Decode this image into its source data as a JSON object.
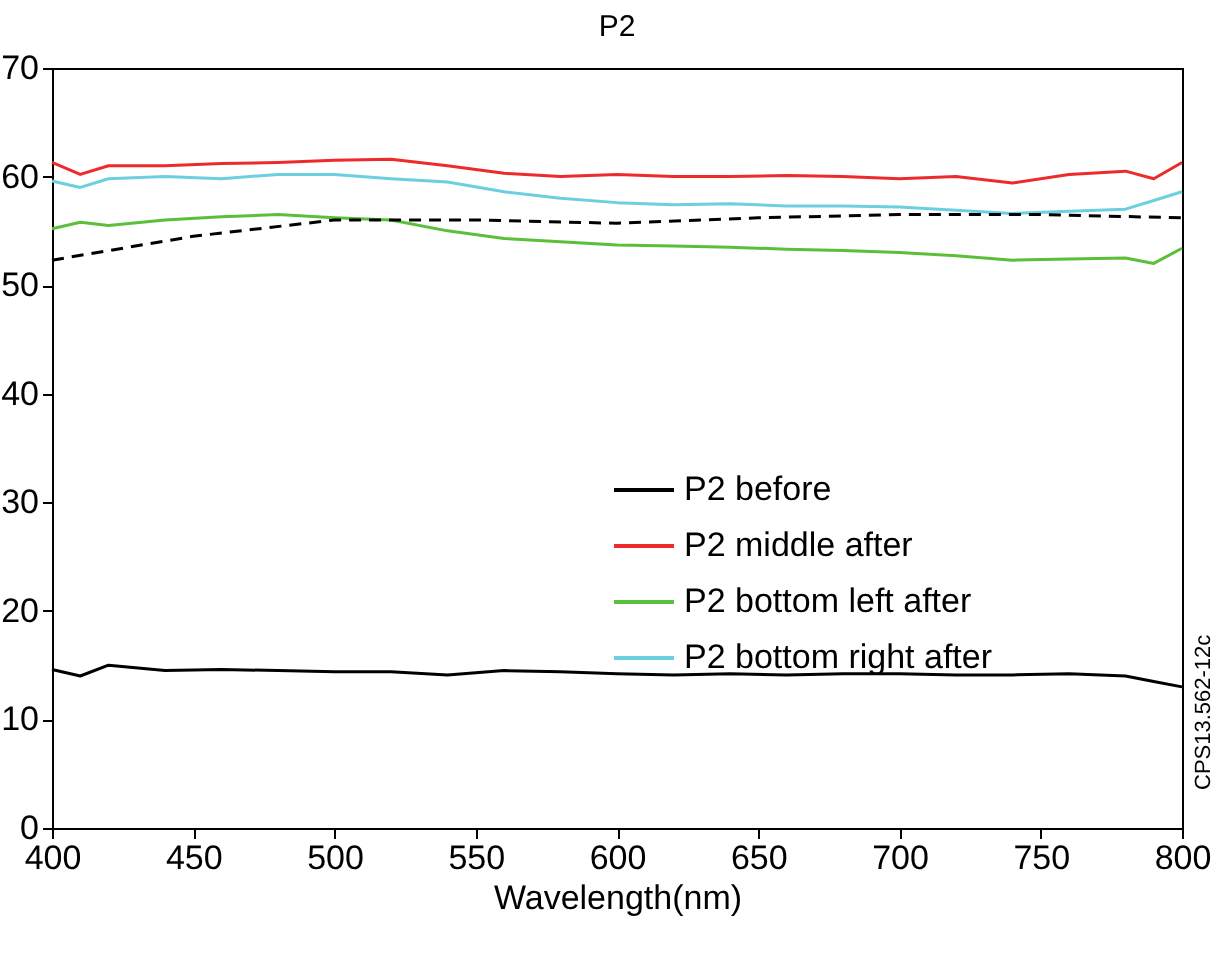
{
  "chart_data": {
    "type": "line",
    "title": "P2",
    "xlabel": "Wavelength(nm)",
    "x": [
      400,
      410,
      420,
      440,
      460,
      480,
      500,
      520,
      540,
      560,
      580,
      600,
      620,
      640,
      660,
      680,
      700,
      720,
      740,
      760,
      780,
      790,
      800
    ],
    "series": [
      {
        "name": "P2  before",
        "color": "#000000",
        "values": [
          14.6,
          14,
          15,
          14.5,
          14.6,
          14.5,
          14.4,
          14.4,
          14.1,
          14.5,
          14.4,
          14.2,
          14.1,
          14.2,
          14.1,
          14.2,
          14.2,
          14.1,
          14.1,
          14.2,
          14,
          13.5,
          13
        ]
      },
      {
        "name": "P2 middle after",
        "color": "#ee2a2a",
        "values": [
          61.3,
          60.2,
          61,
          61,
          61.2,
          61.3,
          61.5,
          61.6,
          61,
          60.3,
          60,
          60.2,
          60,
          60,
          60.1,
          60,
          59.8,
          60,
          59.4,
          60.2,
          60.5,
          59.8,
          61.3
        ]
      },
      {
        "name": "P2 bottom left after",
        "color": "#5bbf3a",
        "values": [
          55.2,
          55.8,
          55.5,
          56,
          56.3,
          56.5,
          56.2,
          56,
          55,
          54.3,
          54,
          53.7,
          53.6,
          53.5,
          53.3,
          53.2,
          53,
          52.7,
          52.3,
          52.4,
          52.5,
          52,
          53.4
        ]
      },
      {
        "name": "P2 bottom right after",
        "color": "#6ccfe0",
        "values": [
          59.6,
          59,
          59.8,
          60,
          59.8,
          60.2,
          60.2,
          59.8,
          59.5,
          58.6,
          58,
          57.6,
          57.4,
          57.5,
          57.3,
          57.3,
          57.2,
          56.9,
          56.6,
          56.8,
          57,
          57.8,
          58.6
        ]
      },
      {
        "color": "#000000",
        "line_style": "dashed",
        "x": [
          400,
          450,
          500,
          550,
          600,
          650,
          700,
          750,
          800
        ],
        "values": [
          52.3,
          54.5,
          56,
          56,
          55.7,
          56.2,
          56.5,
          56.5,
          56.2
        ]
      }
    ],
    "xlim": [
      400,
      800
    ],
    "xticks": [
      400,
      450,
      500,
      550,
      600,
      650,
      700,
      750,
      800
    ],
    "ylim": [
      0,
      70
    ],
    "yticks": [
      0,
      10,
      20,
      30,
      40,
      50,
      60,
      70
    ],
    "grid": false,
    "legend": "right",
    "annotations": [
      "CPS13.562-12c"
    ]
  }
}
